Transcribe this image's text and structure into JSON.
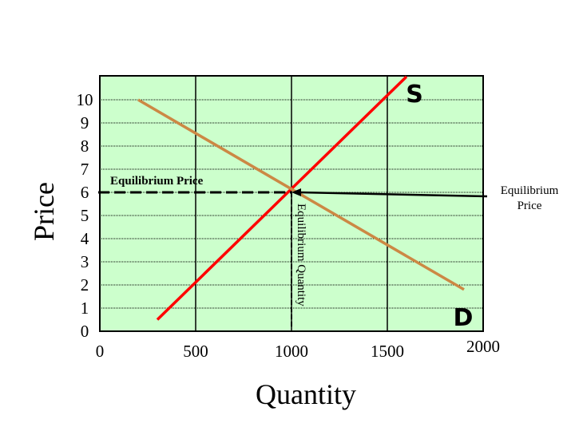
{
  "chart_data": {
    "type": "line",
    "xlabel": "Quantity",
    "ylabel": "Price",
    "xlim": [
      0,
      2000
    ],
    "ylim": [
      0,
      10
    ],
    "x_ticks": [
      "0",
      "500",
      "1000",
      "1500",
      "2000"
    ],
    "y_ticks": [
      "0",
      "1",
      "2",
      "3",
      "4",
      "5",
      "6",
      "7",
      "8",
      "9",
      "10"
    ],
    "grid": true,
    "background": "#ccffcc",
    "series": [
      {
        "name": "S",
        "color": "#ff0000",
        "x": [
          300,
          1600
        ],
        "y": [
          0.5,
          11
        ]
      },
      {
        "name": "D",
        "color": "#cc8844",
        "x": [
          200,
          1900
        ],
        "y": [
          10,
          1.8
        ]
      }
    ],
    "equilibrium": {
      "quantity": 1000,
      "price": 6
    },
    "annotations": {
      "equilibrium_price_left": "Equilibrium Price",
      "equilibrium_price_right": "Equilibrium Price",
      "equilibrium_quantity": "Equilibrium Quantity"
    }
  }
}
